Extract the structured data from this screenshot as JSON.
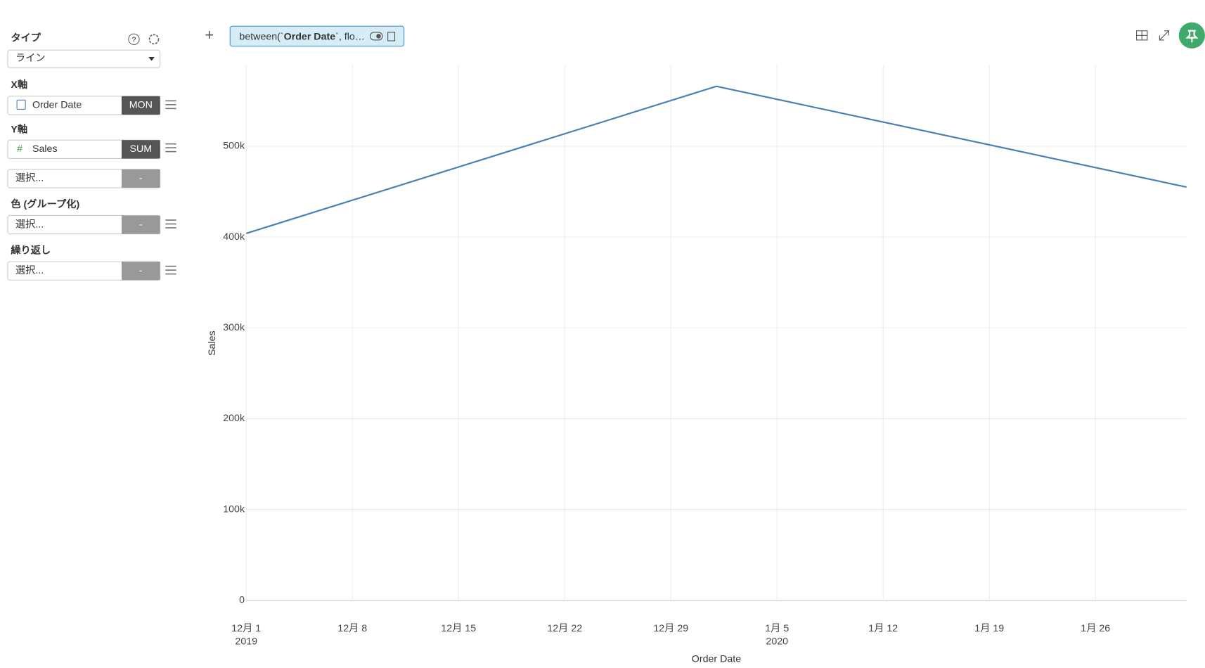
{
  "sidebar": {
    "type_label": "タイプ",
    "type_value": "ライン",
    "x_label": "X軸",
    "x_field": "Order Date",
    "x_agg": "MON",
    "y_label": "Y軸",
    "y_field": "Sales",
    "y_agg": "SUM",
    "extra_placeholder": "選択...",
    "extra_agg": "-",
    "color_label": "色 (グループ化)",
    "color_placeholder": "選択...",
    "color_agg": "-",
    "repeat_label": "繰り返し",
    "repeat_placeholder": "選択...",
    "repeat_agg": "-"
  },
  "filter": {
    "prefix": "between(`",
    "field": "Order Date",
    "suffix": "`, flo…"
  },
  "chart_data": {
    "type": "line",
    "x_label": "Order Date",
    "y_label": "Sales",
    "x": [
      "2019-12-01",
      "2020-01-01",
      "2020-02-01"
    ],
    "values": [
      404000,
      566000,
      455000
    ],
    "color": "#4a7fb5",
    "xlim": [
      "2019-12-01",
      "2020-02-01"
    ],
    "xticks": [
      {
        "value": "2019-12-01",
        "label": "12月 1",
        "sublabel": "2019"
      },
      {
        "value": "2019-12-08",
        "label": "12月 8"
      },
      {
        "value": "2019-12-15",
        "label": "12月 15"
      },
      {
        "value": "2019-12-22",
        "label": "12月 22"
      },
      {
        "value": "2019-12-29",
        "label": "12月 29"
      },
      {
        "value": "2020-01-05",
        "label": "1月 5",
        "sublabel": "2020"
      },
      {
        "value": "2020-01-12",
        "label": "1月 12"
      },
      {
        "value": "2020-01-19",
        "label": "1月 19"
      },
      {
        "value": "2020-01-26",
        "label": "1月 26"
      }
    ],
    "ylim": [
      0,
      589000
    ],
    "yticks": [
      0,
      {
        "value": 100000,
        "label": "100k"
      },
      {
        "value": 200000,
        "label": "200k"
      },
      {
        "value": 300000,
        "label": "300k"
      },
      {
        "value": 400000,
        "label": "400k"
      },
      {
        "value": 500000,
        "label": "500k"
      }
    ],
    "grid": true
  }
}
